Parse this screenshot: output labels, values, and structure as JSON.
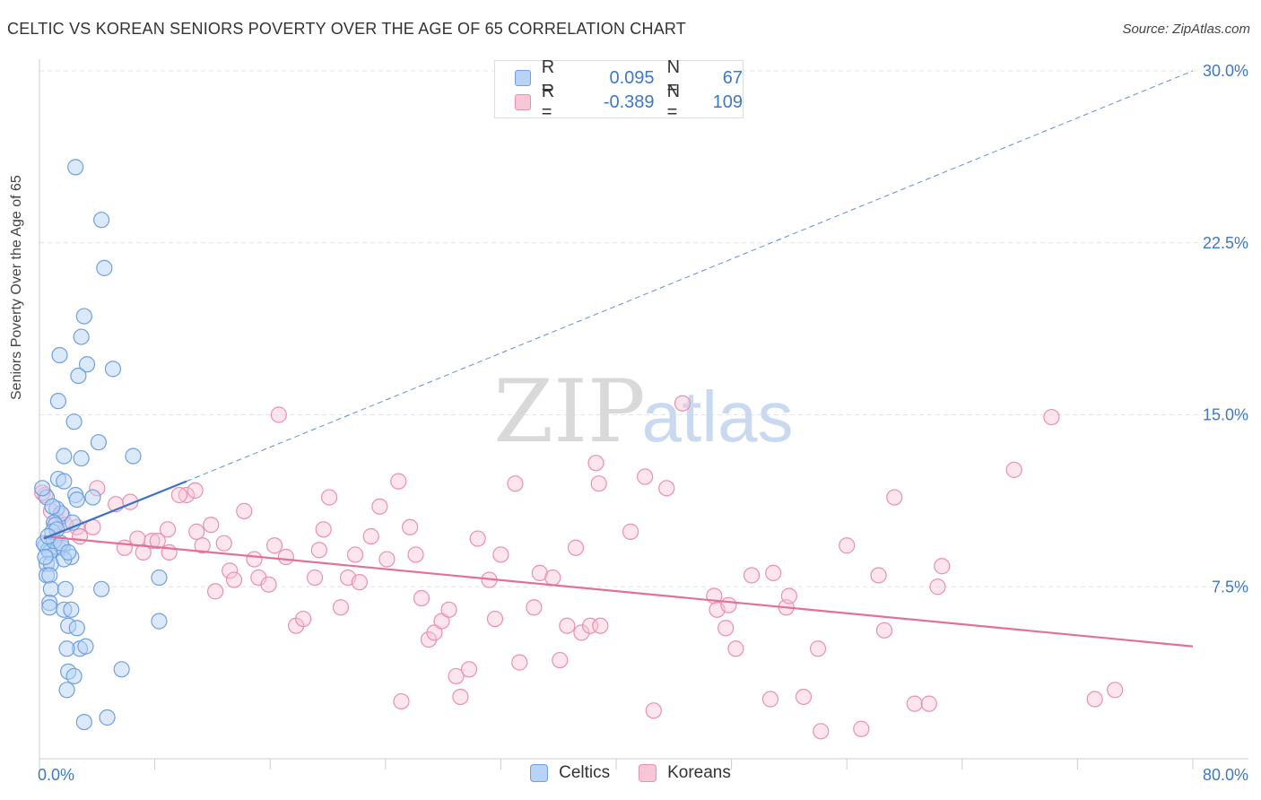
{
  "title": "CELTIC VS KOREAN SENIORS POVERTY OVER THE AGE OF 65 CORRELATION CHART",
  "source": "Source: ZipAtlas.com",
  "legend_top": [
    {
      "r_label": "R =",
      "r_value": "0.095",
      "n_label": "N =",
      "n_value": "67"
    },
    {
      "r_label": "R =",
      "r_value": "-0.389",
      "n_label": "N =",
      "n_value": "109"
    }
  ],
  "colors": {
    "celtics_fill": "#b8d3f5",
    "celtics_stroke": "#6fa0e0",
    "celtics_line": "#3a72c8",
    "koreans_fill": "#f8c6d6",
    "koreans_stroke": "#ea8fb0",
    "koreans_line": "#e2709a",
    "tick_label": "#3c78c8",
    "grid": "#e4e4e4"
  },
  "chart_data": {
    "type": "scatter",
    "title": "CELTIC VS KOREAN SENIORS POVERTY OVER THE AGE OF 65 CORRELATION CHART",
    "xlabel": "",
    "ylabel": "Seniors Poverty Over the Age of 65",
    "xlim": [
      0,
      80
    ],
    "ylim": [
      0,
      30
    ],
    "x_tick_labels": [
      "0.0%",
      "80.0%"
    ],
    "y_ticks": [
      7.5,
      15.0,
      22.5,
      30.0
    ],
    "y_tick_labels": [
      "7.5%",
      "15.0%",
      "22.5%",
      "30.0%"
    ],
    "grid": true,
    "legend": "bottom",
    "watermark": {
      "zip": "ZIP",
      "atlas": "atlas"
    },
    "series": [
      {
        "name": "Celtics",
        "r": 0.095,
        "n": 67,
        "trend_solid": [
          [
            0.3,
            9.6
          ],
          [
            10.2,
            12.1
          ]
        ],
        "trend_dashed": [
          [
            10.2,
            12.1
          ],
          [
            80,
            30.0
          ]
        ],
        "points": [
          [
            2.5,
            25.8
          ],
          [
            4.3,
            23.5
          ],
          [
            4.5,
            21.4
          ],
          [
            3.1,
            19.3
          ],
          [
            2.9,
            18.4
          ],
          [
            1.4,
            17.6
          ],
          [
            3.3,
            17.2
          ],
          [
            5.1,
            17.0
          ],
          [
            2.7,
            16.7
          ],
          [
            1.3,
            15.6
          ],
          [
            2.4,
            14.7
          ],
          [
            4.1,
            13.8
          ],
          [
            6.5,
            13.2
          ],
          [
            1.7,
            13.2
          ],
          [
            2.9,
            13.1
          ],
          [
            1.3,
            12.2
          ],
          [
            1.7,
            12.1
          ],
          [
            2.5,
            11.5
          ],
          [
            3.7,
            11.4
          ],
          [
            2.6,
            11.3
          ],
          [
            0.5,
            11.4
          ],
          [
            1.2,
            10.9
          ],
          [
            1.5,
            10.7
          ],
          [
            1.0,
            10.3
          ],
          [
            1.1,
            10.2
          ],
          [
            0.4,
            9.3
          ],
          [
            0.6,
            9.1
          ],
          [
            1.3,
            9.2
          ],
          [
            1.6,
            9.2
          ],
          [
            0.7,
            9.0
          ],
          [
            2.2,
            8.8
          ],
          [
            0.5,
            8.5
          ],
          [
            0.8,
            8.5
          ],
          [
            0.5,
            8.0
          ],
          [
            0.7,
            8.0
          ],
          [
            0.8,
            7.4
          ],
          [
            8.3,
            7.9
          ],
          [
            4.3,
            7.4
          ],
          [
            1.8,
            7.4
          ],
          [
            0.7,
            6.8
          ],
          [
            0.7,
            6.6
          ],
          [
            1.7,
            6.5
          ],
          [
            2.2,
            6.5
          ],
          [
            8.3,
            6.0
          ],
          [
            2.0,
            5.8
          ],
          [
            2.6,
            5.7
          ],
          [
            2.8,
            4.8
          ],
          [
            3.2,
            4.9
          ],
          [
            1.9,
            4.8
          ],
          [
            5.7,
            3.9
          ],
          [
            2.0,
            3.8
          ],
          [
            2.4,
            3.6
          ],
          [
            1.9,
            3.0
          ],
          [
            4.7,
            1.8
          ],
          [
            3.1,
            1.6
          ],
          [
            0.3,
            9.4
          ],
          [
            1.0,
            9.5
          ],
          [
            0.9,
            9.9
          ],
          [
            1.2,
            10.0
          ],
          [
            0.4,
            8.8
          ],
          [
            1.5,
            9.4
          ],
          [
            2.3,
            10.3
          ],
          [
            0.6,
            9.7
          ],
          [
            0.2,
            11.8
          ],
          [
            1.7,
            8.7
          ],
          [
            0.9,
            11.0
          ],
          [
            2.0,
            9.0
          ]
        ]
      },
      {
        "name": "Koreans",
        "r": -0.389,
        "n": 109,
        "trend": [
          [
            0.3,
            9.7
          ],
          [
            80,
            4.9
          ]
        ],
        "points": [
          [
            0.4,
            11.5
          ],
          [
            1.2,
            10.4
          ],
          [
            1.6,
            10.6
          ],
          [
            2.6,
            10.1
          ],
          [
            3.7,
            10.1
          ],
          [
            4.0,
            11.8
          ],
          [
            5.3,
            11.1
          ],
          [
            6.3,
            11.2
          ],
          [
            7.2,
            9.0
          ],
          [
            7.8,
            9.5
          ],
          [
            8.2,
            9.5
          ],
          [
            9.0,
            9.0
          ],
          [
            10.2,
            11.5
          ],
          [
            10.8,
            11.7
          ],
          [
            10.9,
            9.9
          ],
          [
            11.3,
            9.3
          ],
          [
            11.9,
            10.2
          ],
          [
            12.2,
            7.3
          ],
          [
            12.8,
            9.4
          ],
          [
            13.2,
            8.2
          ],
          [
            13.5,
            7.8
          ],
          [
            14.2,
            10.8
          ],
          [
            14.9,
            8.7
          ],
          [
            15.2,
            7.9
          ],
          [
            15.9,
            7.6
          ],
          [
            16.3,
            9.3
          ],
          [
            16.6,
            15.0
          ],
          [
            17.1,
            8.8
          ],
          [
            17.8,
            5.8
          ],
          [
            18.3,
            6.1
          ],
          [
            19.1,
            7.9
          ],
          [
            19.4,
            9.1
          ],
          [
            19.7,
            10.0
          ],
          [
            20.1,
            11.4
          ],
          [
            20.9,
            6.6
          ],
          [
            21.4,
            7.9
          ],
          [
            21.9,
            8.9
          ],
          [
            22.2,
            7.7
          ],
          [
            23.0,
            9.7
          ],
          [
            23.6,
            11.0
          ],
          [
            24.1,
            8.7
          ],
          [
            24.9,
            12.1
          ],
          [
            25.1,
            2.5
          ],
          [
            25.7,
            10.1
          ],
          [
            26.1,
            8.9
          ],
          [
            26.5,
            7.0
          ],
          [
            27.0,
            5.2
          ],
          [
            27.4,
            5.5
          ],
          [
            27.9,
            6.0
          ],
          [
            28.4,
            6.5
          ],
          [
            28.9,
            3.6
          ],
          [
            29.2,
            2.7
          ],
          [
            29.8,
            3.9
          ],
          [
            30.4,
            9.6
          ],
          [
            31.2,
            7.8
          ],
          [
            31.6,
            6.1
          ],
          [
            32.0,
            8.9
          ],
          [
            33.0,
            12.0
          ],
          [
            33.3,
            4.2
          ],
          [
            34.3,
            6.6
          ],
          [
            34.7,
            8.1
          ],
          [
            35.6,
            7.9
          ],
          [
            36.1,
            4.3
          ],
          [
            36.6,
            5.8
          ],
          [
            37.2,
            9.2
          ],
          [
            37.6,
            5.5
          ],
          [
            38.2,
            5.8
          ],
          [
            38.6,
            12.9
          ],
          [
            38.8,
            12.0
          ],
          [
            38.9,
            5.8
          ],
          [
            41.0,
            9.9
          ],
          [
            42.0,
            12.3
          ],
          [
            42.6,
            2.1
          ],
          [
            43.5,
            11.8
          ],
          [
            44.6,
            15.5
          ],
          [
            46.8,
            7.1
          ],
          [
            47.0,
            6.5
          ],
          [
            47.6,
            5.7
          ],
          [
            47.8,
            6.7
          ],
          [
            48.3,
            4.8
          ],
          [
            49.4,
            8.0
          ],
          [
            50.7,
            2.6
          ],
          [
            50.9,
            8.1
          ],
          [
            51.8,
            6.6
          ],
          [
            52.0,
            7.1
          ],
          [
            53.0,
            2.7
          ],
          [
            54.0,
            4.8
          ],
          [
            54.2,
            1.2
          ],
          [
            56.0,
            9.3
          ],
          [
            57.0,
            1.3
          ],
          [
            58.2,
            8.0
          ],
          [
            58.6,
            5.6
          ],
          [
            59.3,
            11.4
          ],
          [
            60.7,
            2.4
          ],
          [
            61.7,
            2.4
          ],
          [
            62.3,
            7.5
          ],
          [
            62.6,
            8.4
          ],
          [
            67.6,
            12.6
          ],
          [
            70.2,
            14.9
          ],
          [
            73.2,
            2.6
          ],
          [
            74.6,
            3.0
          ],
          [
            0.8,
            10.8
          ],
          [
            1.8,
            10.2
          ],
          [
            2.8,
            9.7
          ],
          [
            6.8,
            9.6
          ],
          [
            9.7,
            11.5
          ],
          [
            8.9,
            10.0
          ],
          [
            5.9,
            9.2
          ],
          [
            0.2,
            11.6
          ]
        ]
      }
    ]
  },
  "legend_bottom": [
    "Celtics",
    "Koreans"
  ]
}
